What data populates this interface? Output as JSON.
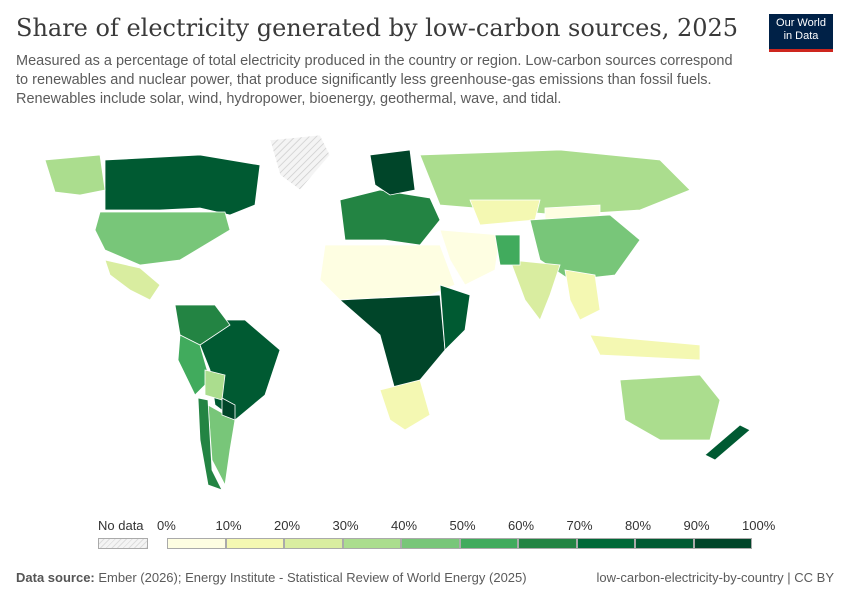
{
  "title": "Share of electricity generated by low-carbon sources, 2025",
  "subtitle": "Measured as a percentage of total electricity produced in the country or region. Low-carbon sources correspond to renewables and nuclear power, that produce significantly less greenhouse-gas emissions than fossil fuels. Renewables include solar, wind, hydropower, bioenergy, geothermal, wave, and tidal.",
  "logo": {
    "line1": "Our World",
    "line2": "in Data"
  },
  "legend": {
    "no_data": "No data",
    "ticks": [
      "0%",
      "10%",
      "20%",
      "30%",
      "40%",
      "50%",
      "60%",
      "70%",
      "80%",
      "90%",
      "100%"
    ],
    "colors": [
      "#fefee2",
      "#f4f8b2",
      "#d9eda0",
      "#abdd8e",
      "#78c679",
      "#41ab5d",
      "#238443",
      "#006837",
      "#005a32",
      "#004529"
    ],
    "no_data_color": "#eeeeee"
  },
  "regions": [
    {
      "name": "Canada",
      "bin": 8
    },
    {
      "name": "United States",
      "bin": 4
    },
    {
      "name": "Mexico",
      "bin": 2
    },
    {
      "name": "Alaska",
      "bin": 3
    },
    {
      "name": "Greenland",
      "bin": -1
    },
    {
      "name": "Brazil",
      "bin": 8
    },
    {
      "name": "Colombia",
      "bin": 6
    },
    {
      "name": "Peru",
      "bin": 5
    },
    {
      "name": "Bolivia",
      "bin": 3
    },
    {
      "name": "Argentina",
      "bin": 4
    },
    {
      "name": "Chile",
      "bin": 6
    },
    {
      "name": "Paraguay",
      "bin": 9
    },
    {
      "name": "Europe",
      "bin": 6
    },
    {
      "name": "Scandinavia",
      "bin": 9
    },
    {
      "name": "Russia",
      "bin": 3
    },
    {
      "name": "North Africa",
      "bin": 0
    },
    {
      "name": "Central Africa",
      "bin": 9
    },
    {
      "name": "East Africa",
      "bin": 8
    },
    {
      "name": "Southern Africa",
      "bin": 1
    },
    {
      "name": "Middle East",
      "bin": 0
    },
    {
      "name": "Kazakhstan",
      "bin": 1
    },
    {
      "name": "Mongolia",
      "bin": 0
    },
    {
      "name": "China",
      "bin": 4
    },
    {
      "name": "India",
      "bin": 2
    },
    {
      "name": "Pakistan",
      "bin": 5
    },
    {
      "name": "Southeast Asia",
      "bin": 1
    },
    {
      "name": "Australia",
      "bin": 3
    },
    {
      "name": "New Zealand",
      "bin": 8
    },
    {
      "name": "Indonesia",
      "bin": 1
    }
  ],
  "footer": {
    "label": "Data source:",
    "source": "Ember (2026); Energy Institute - Statistical Review of World Energy (2025)",
    "license": "low-carbon-electricity-by-country | CC BY"
  }
}
